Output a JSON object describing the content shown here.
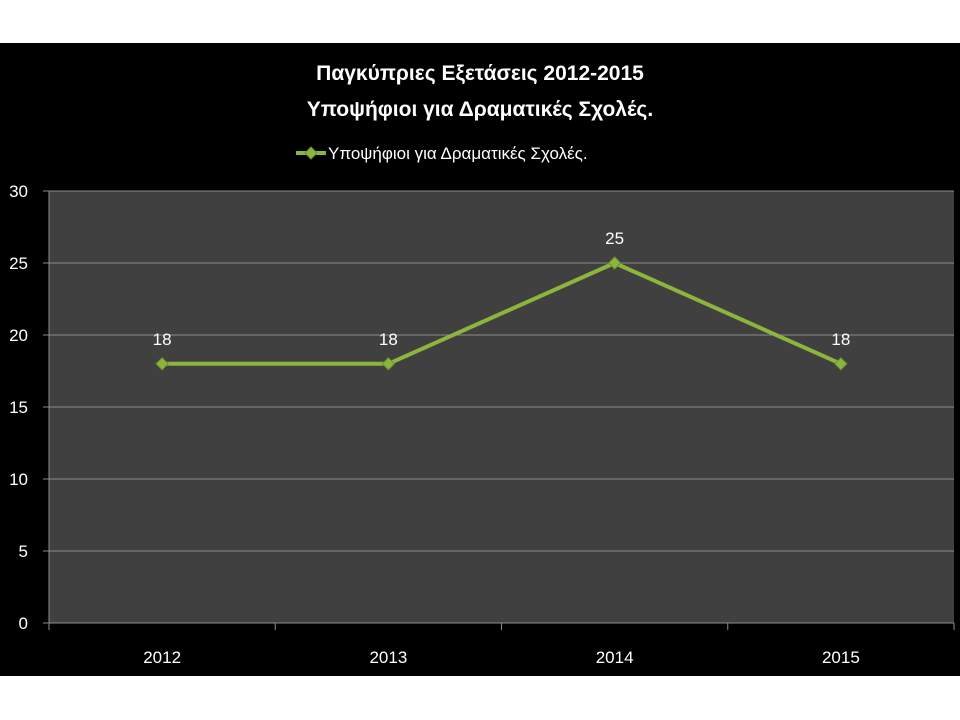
{
  "chart_data": {
    "type": "line",
    "title_lines": [
      "Παγκύπριες Εξετάσεις 2012-2015",
      "Υποψήφιοι για Δραματικές Σχολές."
    ],
    "categories": [
      "2012",
      "2013",
      "2014",
      "2015"
    ],
    "series": [
      {
        "name": "Υποψήφιοι για Δραματικές Σχολές.",
        "values": [
          18,
          18,
          25,
          18
        ],
        "color": "#8db43c"
      }
    ],
    "data_labels": [
      "18",
      "18",
      "25",
      "18"
    ],
    "ylim": [
      0,
      30
    ],
    "yticks": [
      "0",
      "5",
      "10",
      "15",
      "20",
      "25",
      "30"
    ],
    "ytick_values": [
      0,
      5,
      10,
      15,
      20,
      25,
      30
    ],
    "grid": true,
    "legend_position": "top",
    "colors": {
      "page_background": "#ffffff",
      "chart_background": "#000000",
      "plot_background": "#404040",
      "gridline": "#8c8c8c",
      "text": "#ffffff"
    }
  }
}
